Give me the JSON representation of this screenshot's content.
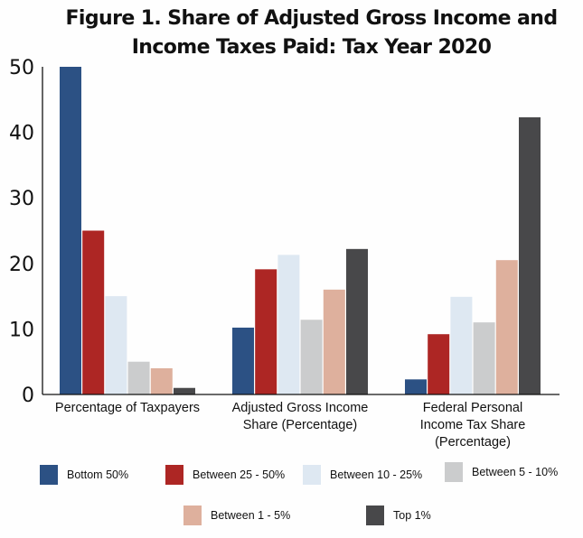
{
  "chart_data": {
    "type": "bar",
    "title": "Figure 1. Share of Adjusted Gross Income and Income Taxes Paid: Tax Year 2020",
    "title_lines": [
      "Figure 1. Share of Adjusted Gross Income and",
      "Income Taxes Paid: Tax Year 2020"
    ],
    "xlabel": "",
    "ylabel": "",
    "ylim": [
      0,
      50
    ],
    "yticks": [
      0,
      10,
      20,
      30,
      40,
      50
    ],
    "grid": false,
    "legend_position": "bottom",
    "categories": [
      [
        "Percentage of Taxpayers"
      ],
      [
        "Adjusted Gross Income",
        "Share (Percentage)"
      ],
      [
        "Federal Personal",
        "Income Tax Share",
        "(Percentage)"
      ]
    ],
    "series": [
      {
        "name": "Bottom 50%",
        "color": "#2c5184",
        "values": [
          50,
          10.2,
          2.3
        ]
      },
      {
        "name": "Between 25 - 50%",
        "color": "#ad2624",
        "values": [
          25,
          19.1,
          9.2
        ]
      },
      {
        "name": "Between 10 - 25%",
        "color": "#dee8f2",
        "values": [
          15,
          21.3,
          14.9
        ]
      },
      {
        "name": "Between 5 - 10%",
        "color": "#cbcccd",
        "values": [
          5,
          11.4,
          11.0
        ]
      },
      {
        "name": "Between 1 - 5%",
        "color": "#deb09d",
        "values": [
          4,
          16.0,
          20.5
        ]
      },
      {
        "name": "Top 1%",
        "color": "#48484a",
        "values": [
          1,
          22.2,
          42.3
        ]
      }
    ]
  }
}
